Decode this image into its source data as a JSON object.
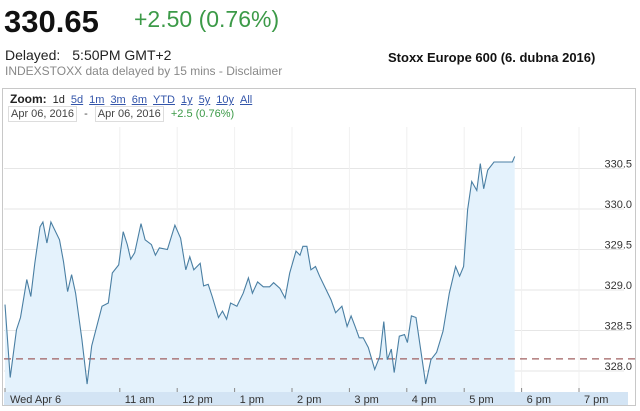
{
  "quote": {
    "price": "330.65",
    "change": "+2.50 (0.76%)",
    "delayed_label": "Delayed:",
    "delayed_time": "5:50PM GMT+2",
    "disclaimer": "INDEXSTOXX data delayed by 15 mins - Disclaimer"
  },
  "caption": "Stoxx Europe 600 (6. dubna 2016)",
  "zoom": {
    "label": "Zoom:",
    "options": [
      "1d",
      "5d",
      "1m",
      "3m",
      "6m",
      "YTD",
      "1y",
      "5y",
      "10y",
      "All"
    ],
    "selected": "1d"
  },
  "range": {
    "from": "Apr 06, 2016",
    "sep": "-",
    "to": "Apr 06, 2016",
    "change": "+2.5 (0.76%)"
  },
  "colors": {
    "line": "#4a7fa3",
    "fill": "#e4f2fc",
    "prev_close": "#a06060",
    "positive": "#3c9a48",
    "axis_band": "#d3e4f4"
  },
  "chart_data": {
    "type": "area",
    "title": "Stoxx Europe 600 (6. dubna 2016)",
    "xlabel": "",
    "ylabel": "",
    "x_unit": "hour of day",
    "xlim": [
      9,
      19.9
    ],
    "ylim": [
      327.7,
      330.9
    ],
    "grid": true,
    "x_ticks": [
      {
        "x": 9,
        "label": "Wed Apr 6"
      },
      {
        "x": 11,
        "label": "11 am"
      },
      {
        "x": 12,
        "label": "12 pm"
      },
      {
        "x": 13,
        "label": "1 pm"
      },
      {
        "x": 14,
        "label": "2 pm"
      },
      {
        "x": 15,
        "label": "3 pm"
      },
      {
        "x": 16,
        "label": "4 pm"
      },
      {
        "x": 17,
        "label": "5 pm"
      },
      {
        "x": 18,
        "label": "6 pm"
      },
      {
        "x": 19,
        "label": "7 pm"
      }
    ],
    "y_ticks": [
      {
        "y": 330.5,
        "label": "330.5"
      },
      {
        "y": 330.0,
        "label": "330.0"
      },
      {
        "y": 329.5,
        "label": "329.5"
      },
      {
        "y": 329.0,
        "label": "329.0"
      },
      {
        "y": 328.5,
        "label": "328.5"
      },
      {
        "y": 328.0,
        "label": "328.0"
      }
    ],
    "previous_close": 328.15,
    "series": [
      {
        "name": "Stoxx Europe 600",
        "x": [
          9.0,
          9.09,
          9.2,
          9.27,
          9.38,
          9.45,
          9.52,
          9.61,
          9.66,
          9.73,
          9.8,
          9.95,
          10.02,
          10.09,
          10.16,
          10.23,
          10.34,
          10.43,
          10.51,
          10.69,
          10.8,
          10.87,
          10.98,
          11.06,
          11.13,
          11.19,
          11.26,
          11.37,
          11.44,
          11.55,
          11.62,
          11.69,
          11.83,
          11.96,
          12.06,
          12.15,
          12.22,
          12.29,
          12.4,
          12.46,
          12.54,
          12.61,
          12.72,
          12.79,
          12.86,
          12.93,
          13.04,
          13.15,
          13.24,
          13.31,
          13.4,
          13.5,
          13.61,
          13.68,
          13.79,
          13.88,
          13.96,
          14.07,
          14.14,
          14.19,
          14.26,
          14.33,
          14.41,
          14.48,
          14.57,
          14.68,
          14.76,
          14.87,
          14.96,
          15.03,
          15.1,
          15.17,
          15.24,
          15.33,
          15.44,
          15.53,
          15.6,
          15.66,
          15.73,
          15.78,
          15.87,
          15.96,
          16.01,
          16.08,
          16.16,
          16.24,
          16.33,
          16.42,
          16.52,
          16.63,
          16.74,
          16.85,
          16.92,
          16.99,
          17.06,
          17.13,
          17.22,
          17.28,
          17.34,
          17.41,
          17.52,
          17.84,
          17.88
        ],
        "y": [
          328.82,
          327.92,
          328.51,
          328.66,
          329.13,
          328.92,
          329.33,
          329.78,
          329.84,
          329.58,
          329.84,
          329.62,
          329.35,
          328.98,
          329.19,
          328.96,
          328.39,
          327.84,
          328.31,
          328.8,
          328.84,
          329.21,
          329.31,
          329.72,
          329.56,
          329.38,
          329.46,
          329.82,
          329.62,
          329.56,
          329.43,
          329.52,
          329.5,
          329.8,
          329.64,
          329.25,
          329.41,
          329.25,
          329.33,
          329.05,
          329.07,
          328.92,
          328.66,
          328.74,
          328.64,
          328.84,
          328.8,
          328.96,
          329.15,
          328.96,
          329.1,
          329.04,
          329.04,
          329.09,
          329.02,
          328.9,
          329.21,
          329.48,
          329.43,
          329.54,
          329.54,
          329.25,
          329.29,
          329.17,
          329.04,
          328.88,
          328.72,
          328.8,
          328.55,
          328.68,
          328.55,
          328.41,
          328.41,
          328.29,
          328.02,
          328.18,
          328.61,
          328.14,
          328.27,
          327.98,
          328.43,
          328.45,
          328.35,
          328.68,
          328.66,
          328.27,
          327.84,
          328.14,
          328.23,
          328.49,
          328.96,
          329.29,
          329.17,
          329.29,
          329.99,
          330.34,
          330.23,
          330.56,
          330.25,
          330.48,
          330.58,
          330.58,
          330.65
        ]
      }
    ]
  }
}
